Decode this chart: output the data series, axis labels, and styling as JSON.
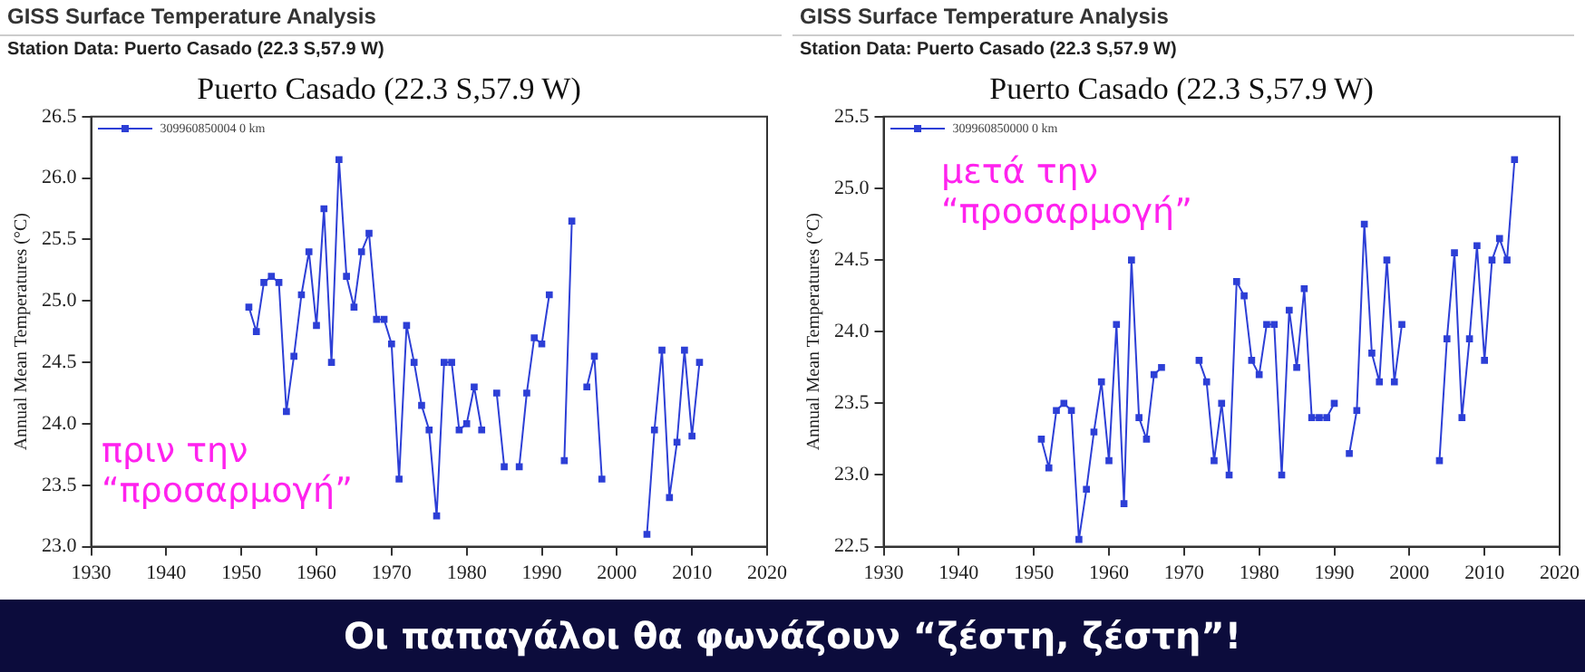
{
  "chart_data": [
    {
      "type": "line",
      "title": "Puerto Casado (22.3 S,57.9 W)",
      "subtitle": "Station Data: Puerto Casado (22.3 S,57.9 W)",
      "ylabel": "Annual Mean Temperatures (°C)",
      "annotations": [
        "GISS Surface Temperature Analysis",
        "πριν την “προσαρμογή”",
        "Οι παπαγάλοι θα φωνάζουν “ζέστη, ζέστη”!"
      ],
      "x": [
        1951,
        1952,
        1953,
        1954,
        1955,
        1956,
        1957,
        1958,
        1959,
        1960,
        1961,
        1962,
        1963,
        1964,
        1965,
        1966,
        1967,
        1968,
        1969,
        1970,
        1971,
        1972,
        1973,
        1974,
        1975,
        1976,
        1977,
        1978,
        1979,
        1980,
        1981,
        1982,
        1983,
        1984,
        1985,
        1986,
        1987,
        1988,
        1989,
        1990,
        1991,
        1992,
        1993,
        1994,
        1995,
        1996,
        1997,
        1998,
        1999,
        2000,
        2001,
        2002,
        2003,
        2004,
        2005,
        2006,
        2007,
        2008,
        2009,
        2010,
        2011
      ],
      "series": [
        {
          "name": "309960850004 0 km",
          "color": "#2d3fd6",
          "values": [
            24.95,
            24.75,
            25.15,
            25.2,
            25.15,
            24.1,
            24.55,
            25.05,
            25.4,
            24.8,
            25.75,
            24.5,
            26.15,
            25.2,
            24.95,
            25.4,
            25.55,
            24.85,
            24.85,
            24.65,
            23.55,
            24.8,
            24.5,
            24.15,
            23.95,
            23.25,
            24.5,
            24.5,
            23.95,
            24.0,
            24.3,
            23.95,
            null,
            24.25,
            23.65,
            null,
            23.65,
            24.25,
            24.7,
            24.65,
            25.05,
            null,
            23.7,
            25.65,
            null,
            24.3,
            24.55,
            23.55,
            null,
            null,
            null,
            null,
            null,
            23.1,
            23.95,
            24.6,
            23.4,
            23.85,
            24.6,
            23.9,
            24.5
          ]
        }
      ],
      "xlim": [
        1930,
        2020
      ],
      "xticks": [
        1930,
        1940,
        1950,
        1960,
        1970,
        1980,
        1990,
        2000,
        2010,
        2020
      ],
      "ylim": [
        23,
        26.5
      ],
      "yticks": [
        {
          "value": 23,
          "label": "23.0"
        },
        23.5,
        {
          "value": 24,
          "label": "24.0"
        },
        24.5,
        {
          "value": 25,
          "label": "25.0"
        },
        25.5,
        {
          "value": 26,
          "label": "26.0"
        },
        26.5
      ],
      "legend": "top left",
      "marker": "square",
      "line_style": "solid"
    },
    {
      "type": "line",
      "title": "Puerto Casado (22.3 S,57.9 W)",
      "subtitle": "Station Data: Puerto Casado (22.3 S,57.9 W)",
      "ylabel": "Annual Mean Temperatures (°C)",
      "annotations": [
        "GISS Surface Temperature Analysis",
        "μετά την “προσαρμογή”"
      ],
      "x": [
        1951,
        1952,
        1953,
        1954,
        1955,
        1956,
        1957,
        1958,
        1959,
        1960,
        1961,
        1962,
        1963,
        1964,
        1965,
        1966,
        1967,
        1968,
        1969,
        1970,
        1971,
        1972,
        1973,
        1974,
        1975,
        1976,
        1977,
        1978,
        1979,
        1980,
        1981,
        1982,
        1983,
        1984,
        1985,
        1986,
        1987,
        1988,
        1989,
        1990,
        1991,
        1992,
        1993,
        1994,
        1995,
        1996,
        1997,
        1998,
        1999,
        2000,
        2001,
        2002,
        2003,
        2004,
        2005,
        2006,
        2007,
        2008,
        2009,
        2010,
        2011,
        2012,
        2013,
        2014
      ],
      "series": [
        {
          "name": "309960850000 0 km",
          "color": "#2d3fd6",
          "values": [
            23.25,
            23.05,
            23.45,
            23.5,
            23.45,
            22.55,
            22.9,
            23.3,
            23.65,
            23.1,
            24.05,
            22.8,
            24.5,
            23.4,
            23.25,
            23.7,
            23.75,
            null,
            null,
            null,
            null,
            23.8,
            23.65,
            23.1,
            23.5,
            23.0,
            24.35,
            24.25,
            23.8,
            23.7,
            24.05,
            24.05,
            23.0,
            24.15,
            23.75,
            24.3,
            23.4,
            23.4,
            23.4,
            23.5,
            null,
            23.15,
            23.45,
            24.75,
            23.85,
            23.65,
            24.5,
            23.65,
            24.05,
            null,
            null,
            null,
            null,
            23.1,
            23.95,
            24.55,
            23.4,
            23.95,
            24.6,
            23.8,
            24.5,
            24.65,
            24.5,
            25.2
          ]
        }
      ],
      "xlim": [
        1930,
        2020
      ],
      "xticks": [
        1930,
        1940,
        1950,
        1960,
        1970,
        1980,
        1990,
        2000,
        2010,
        2020
      ],
      "ylim": [
        22.5,
        25.5
      ],
      "yticks": [
        22.5,
        {
          "value": 23,
          "label": "23.0"
        },
        23.5,
        {
          "value": 24,
          "label": "24.0"
        },
        24.5,
        {
          "value": 25,
          "label": "25.0"
        },
        25.5
      ],
      "legend": "top left",
      "marker": "square",
      "line_style": "solid"
    }
  ]
}
